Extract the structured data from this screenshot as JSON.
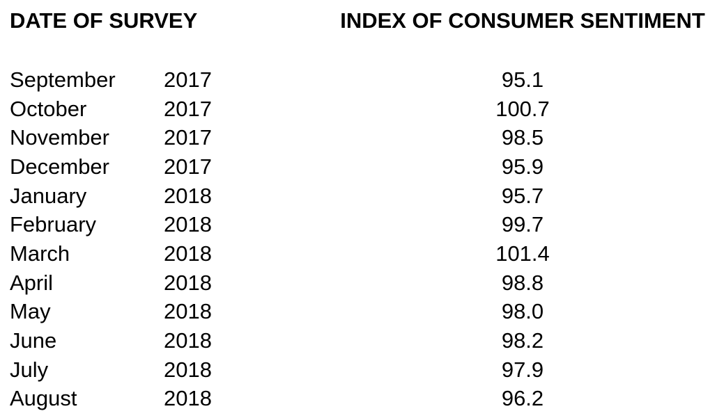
{
  "table": {
    "header_date": "DATE OF SURVEY",
    "header_index": "INDEX OF CONSUMER SENTIMENT",
    "rows": [
      {
        "month": "September",
        "year": "2017",
        "index": "95.1"
      },
      {
        "month": "October",
        "year": "2017",
        "index": "100.7"
      },
      {
        "month": "November",
        "year": "2017",
        "index": "98.5"
      },
      {
        "month": "December",
        "year": "2017",
        "index": "95.9"
      },
      {
        "month": "January",
        "year": "2018",
        "index": "95.7"
      },
      {
        "month": "February",
        "year": "2018",
        "index": "99.7"
      },
      {
        "month": "March",
        "year": "2018",
        "index": "101.4"
      },
      {
        "month": "April",
        "year": "2018",
        "index": "98.8"
      },
      {
        "month": "May",
        "year": "2018",
        "index": "98.0"
      },
      {
        "month": "June",
        "year": "2018",
        "index": "98.2"
      },
      {
        "month": "July",
        "year": "2018",
        "index": "97.9"
      },
      {
        "month": "August",
        "year": "2018",
        "index": "96.2"
      }
    ]
  },
  "chart_data": {
    "type": "table",
    "title": "",
    "columns": [
      "DATE OF SURVEY",
      "INDEX OF CONSUMER SENTIMENT"
    ],
    "categories": [
      "September 2017",
      "October 2017",
      "November 2017",
      "December 2017",
      "January 2018",
      "February 2018",
      "March 2018",
      "April 2018",
      "May 2018",
      "June 2018",
      "July 2018",
      "August 2018"
    ],
    "values": [
      95.1,
      100.7,
      98.5,
      95.9,
      95.7,
      99.7,
      101.4,
      98.8,
      98.0,
      98.2,
      97.9,
      96.2
    ]
  },
  "colors": {
    "text": "#000000",
    "background": "#ffffff"
  }
}
